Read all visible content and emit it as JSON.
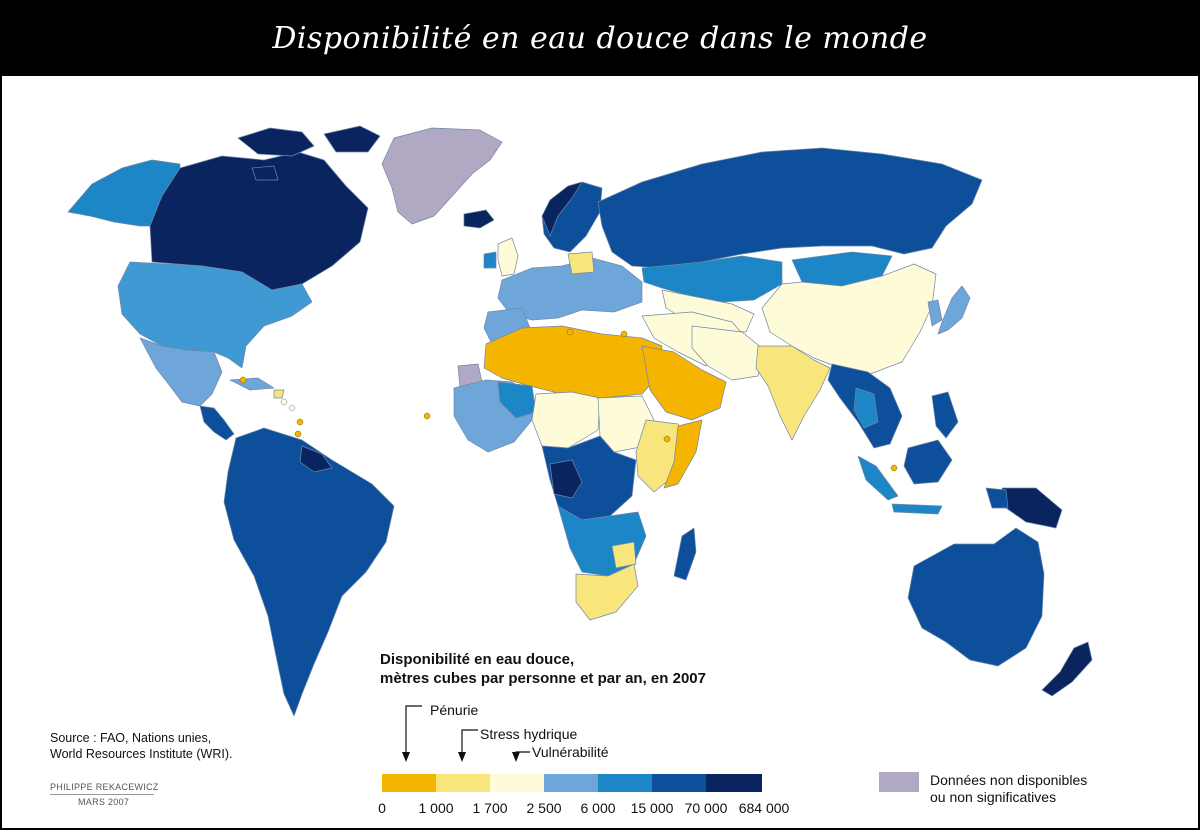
{
  "title": "Disponibilité en eau douce dans le monde",
  "legend": {
    "title_line1": "Disponibilité en eau douce,",
    "title_line2": "mètres cubes par personne et par an, en 2007",
    "thresholds": [
      {
        "label": "Pénurie",
        "value": "1 000"
      },
      {
        "label": "Stress hydrique",
        "value": "1 700"
      },
      {
        "label": "Vulnérabilité",
        "value": "2 500"
      }
    ],
    "scale_labels": [
      "0",
      "1 000",
      "1 700",
      "2 500",
      "6 000",
      "15 000",
      "70 000",
      "684 000"
    ],
    "classes": [
      {
        "range": "0 – 1 000",
        "color": "#f5b400"
      },
      {
        "range": "1 000 – 1 700",
        "color": "#f8e57c"
      },
      {
        "range": "1 700 – 2 500",
        "color": "#fdfbd8"
      },
      {
        "range": "2 500 – 6 000",
        "color": "#6fa6d9"
      },
      {
        "range": "6 000 – 15 000",
        "color": "#1d86c7"
      },
      {
        "range": "15 000 – 70 000",
        "color": "#0d4f9a"
      },
      {
        "range": "70 000 – 684 000",
        "color": "#0a2460"
      }
    ],
    "no_data": {
      "line1": "Données non disponibles",
      "line2": "ou non significatives",
      "color": "#b1a9c3"
    }
  },
  "source": {
    "line1": "Source : FAO, Nations unies,",
    "line2": "World Resources Institute (WRI)."
  },
  "credit": {
    "author": "PHILIPPE REKACEWICZ",
    "date": "MARS 2007"
  }
}
